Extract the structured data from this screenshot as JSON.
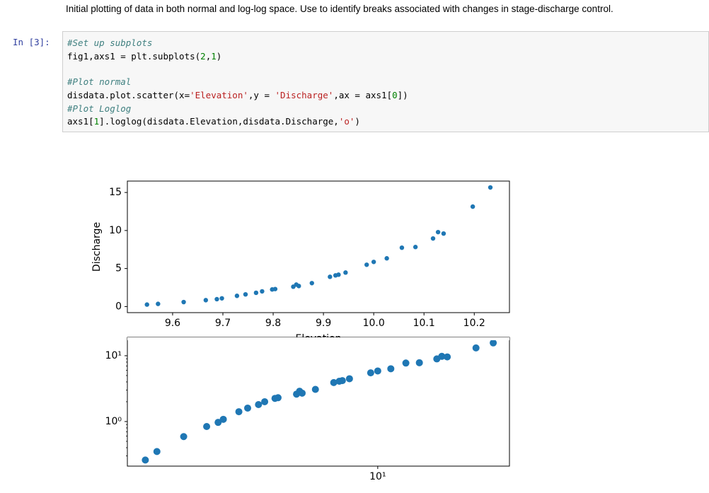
{
  "markdown": "Initial plotting of data in both normal and log-log space. Use to identify breaks associated with changes in stage-discharge control.",
  "cell": {
    "prompt": "In [3]:",
    "blocks": [
      [
        [
          {
            "text": "#Set up subplots",
            "style": "comment"
          }
        ],
        [
          {
            "text": "fig1,axs1 = plt.subplots("
          },
          {
            "text": "2",
            "style": "number"
          },
          {
            "text": ","
          },
          {
            "text": "1",
            "style": "number"
          },
          {
            "text": ")"
          }
        ]
      ],
      [
        [
          {
            "text": "#Plot normal",
            "style": "comment"
          }
        ],
        [
          {
            "text": "disdata.plot.scatter(x="
          },
          {
            "text": "'Elevation'",
            "style": "string"
          },
          {
            "text": ",y = "
          },
          {
            "text": "'Discharge'",
            "style": "string"
          },
          {
            "text": ",ax = axs1["
          },
          {
            "text": "0",
            "style": "number"
          },
          {
            "text": "])"
          }
        ],
        [
          {
            "text": "#Plot Loglog",
            "style": "comment"
          }
        ],
        [
          {
            "text": "axs1["
          },
          {
            "text": "1",
            "style": "number"
          },
          {
            "text": "].loglog(disdata.Elevation,disdata.Discharge,"
          },
          {
            "text": "'o'",
            "style": "string"
          },
          {
            "text": ")"
          }
        ]
      ]
    ]
  },
  "chart_data": [
    {
      "type": "scatter",
      "x_label": "Elevation",
      "y_label": "Discharge",
      "color": "#1f77b4",
      "x": [
        9.549,
        9.571,
        9.622,
        9.666,
        9.688,
        9.698,
        9.728,
        9.745,
        9.766,
        9.778,
        9.798,
        9.804,
        9.84,
        9.846,
        9.851,
        9.877,
        9.913,
        9.924,
        9.93,
        9.944,
        9.986,
        10.0,
        10.026,
        10.056,
        10.083,
        10.118,
        10.128,
        10.139,
        10.197,
        10.232
      ],
      "y": [
        0.26,
        0.35,
        0.59,
        0.84,
        0.97,
        1.08,
        1.41,
        1.6,
        1.81,
        2.0,
        2.25,
        2.3,
        2.61,
        2.89,
        2.7,
        3.08,
        3.91,
        4.1,
        4.19,
        4.47,
        5.5,
        5.87,
        6.34,
        7.74,
        7.83,
        8.95,
        9.79,
        9.6,
        13.14,
        15.66
      ],
      "xlim": [
        9.51,
        10.27
      ],
      "ylim": [
        -0.8,
        16.5
      ],
      "xticks": [
        9.6,
        9.7,
        9.8,
        9.9,
        {
          "value": 10,
          "label": "10.0"
        },
        10.1,
        10.2
      ],
      "yticks": [
        0,
        5,
        10,
        15
      ]
    },
    {
      "type": "scatter",
      "log_x": true,
      "log_y": true,
      "color": "#1f77b4",
      "x": [
        9.549,
        9.571,
        9.622,
        9.666,
        9.688,
        9.698,
        9.728,
        9.745,
        9.766,
        9.778,
        9.798,
        9.804,
        9.84,
        9.846,
        9.851,
        9.877,
        9.913,
        9.924,
        9.93,
        9.944,
        9.986,
        10.0,
        10.026,
        10.056,
        10.083,
        10.118,
        10.128,
        10.139,
        10.197,
        10.232
      ],
      "y": [
        0.26,
        0.35,
        0.59,
        0.84,
        0.97,
        1.08,
        1.41,
        1.6,
        1.81,
        2.0,
        2.25,
        2.3,
        2.61,
        2.89,
        2.7,
        3.08,
        3.91,
        4.1,
        4.19,
        4.47,
        5.5,
        5.87,
        6.34,
        7.74,
        7.83,
        8.95,
        9.79,
        9.6,
        13.14,
        15.66
      ],
      "xlim": [
        9.515,
        10.265
      ],
      "ylim": [
        0.21,
        19
      ],
      "xticks": [
        {
          "value": 10,
          "label": "10¹"
        }
      ],
      "yticks": [
        {
          "value": 1,
          "label": "10⁰"
        },
        {
          "value": 10,
          "label": "10¹"
        }
      ],
      "yminorticks": [
        0.3,
        0.4,
        0.5,
        0.6,
        0.7,
        0.8,
        0.9,
        2,
        3,
        4,
        5,
        6,
        7,
        8,
        9
      ]
    }
  ]
}
